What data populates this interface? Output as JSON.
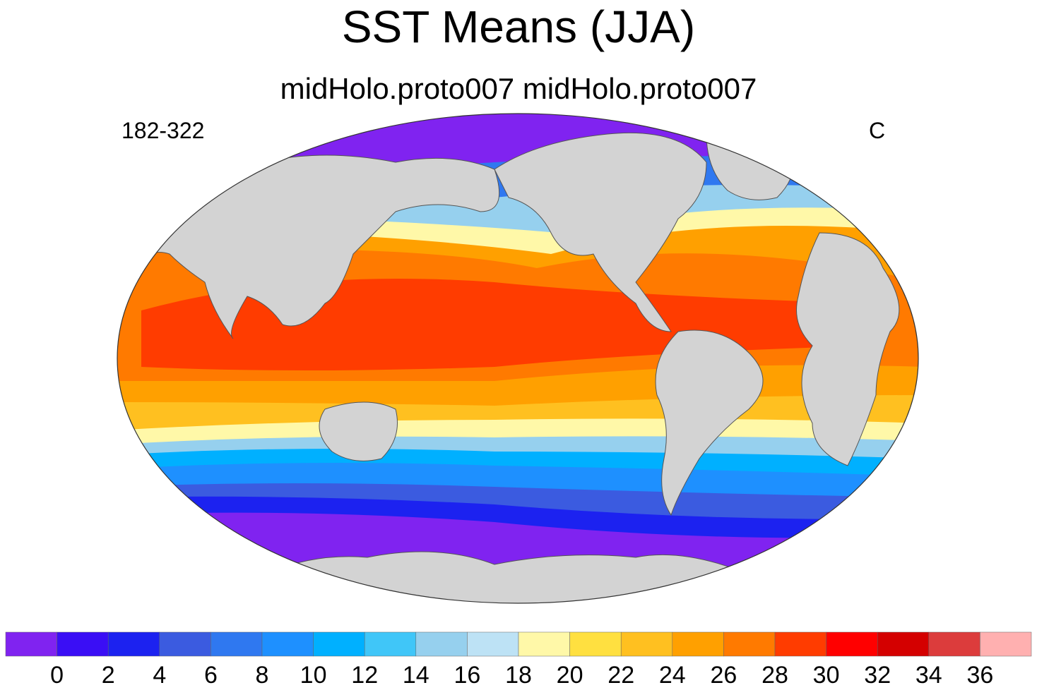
{
  "title": "SST Means (JJA)",
  "subtitle": "midHolo.proto007  midHolo.proto007",
  "left_annotation": "182-322",
  "right_annotation": "C",
  "colors": {
    "land": "#d3d3d3",
    "ice": "#ffffff",
    "coastline": "#555555"
  },
  "colorbar": {
    "tick_labels": [
      "0",
      "2",
      "4",
      "6",
      "8",
      "10",
      "12",
      "14",
      "16",
      "18",
      "20",
      "22",
      "24",
      "26",
      "28",
      "30",
      "32",
      "34",
      "36"
    ],
    "bins": [
      {
        "color": "#8023f0"
      },
      {
        "color": "#3a0ef5"
      },
      {
        "color": "#1c22f0"
      },
      {
        "color": "#3b5be0"
      },
      {
        "color": "#2f78f0"
      },
      {
        "color": "#1e90ff"
      },
      {
        "color": "#00b0ff"
      },
      {
        "color": "#40c6f8"
      },
      {
        "color": "#96d0ee"
      },
      {
        "color": "#bde2f5"
      },
      {
        "color": "#fff8a8"
      },
      {
        "color": "#ffe040"
      },
      {
        "color": "#ffc020"
      },
      {
        "color": "#ffa000"
      },
      {
        "color": "#ff7a00"
      },
      {
        "color": "#ff3c00"
      },
      {
        "color": "#ff0000"
      },
      {
        "color": "#d40000"
      },
      {
        "color": "#dc3c3c"
      },
      {
        "color": "#ffb0b0"
      }
    ]
  }
}
